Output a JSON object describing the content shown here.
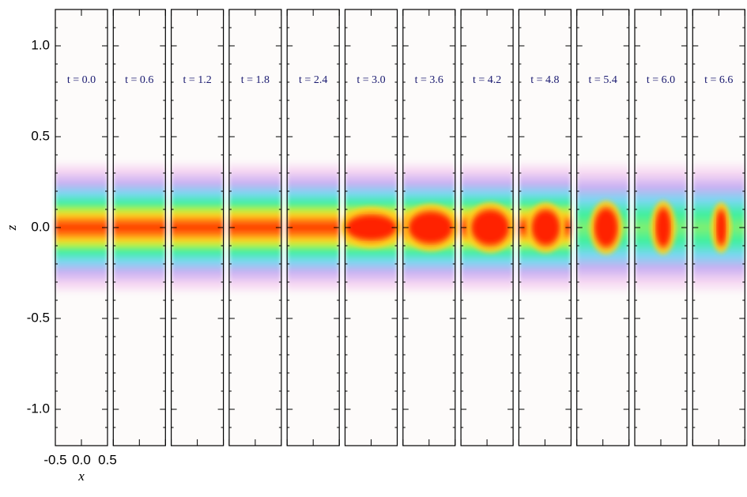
{
  "chart_data": {
    "type": "density-panels",
    "panel_labels": [
      "t = 0.0",
      "t = 0.6",
      "t = 1.2",
      "t = 1.8",
      "t = 2.4",
      "t = 3.0",
      "t = 3.6",
      "t = 4.2",
      "t = 4.8",
      "t = 5.4",
      "t = 6.0",
      "t = 6.6"
    ],
    "label_color": "#1a1a70",
    "xlabel": "x",
    "ylabel": "z",
    "xlim": [
      -0.5,
      0.5
    ],
    "xticks": [
      {
        "value": -0.5,
        "label": "-0.5"
      },
      {
        "value": 0,
        "label": "0.0"
      },
      {
        "value": 0.5,
        "label": "0.5"
      }
    ],
    "ylim": [
      -1.2,
      1.2
    ],
    "yticks": [
      {
        "value": 1,
        "label": "1.0"
      },
      {
        "value": 0.5,
        "label": "0.5"
      },
      {
        "value": 0,
        "label": "0.0"
      },
      {
        "value": -0.5,
        "label": "-0.5"
      },
      {
        "value": -1,
        "label": "-1.0"
      }
    ]
  }
}
